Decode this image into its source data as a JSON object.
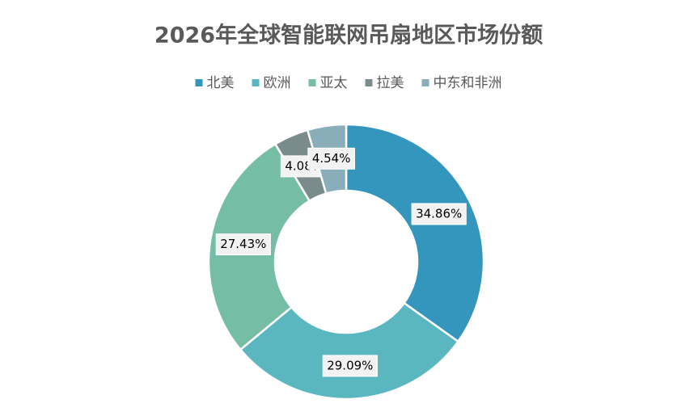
{
  "chart_data": {
    "type": "donut",
    "title": "2026年全球智能联网吊扇地区市场份额",
    "categories": [
      "北美",
      "欧洲",
      "亚太",
      "拉美",
      "中东和非洲"
    ],
    "values": [
      34.86,
      29.09,
      27.43,
      4.08,
      4.54
    ],
    "value_labels": [
      "34.86%",
      "29.09%",
      "27.43%",
      "4.08%",
      "4.54%"
    ],
    "colors": [
      "#3596bd",
      "#5ab7c0",
      "#75bea5",
      "#7a8b8b",
      "#89aeb9"
    ],
    "legend": "top"
  }
}
